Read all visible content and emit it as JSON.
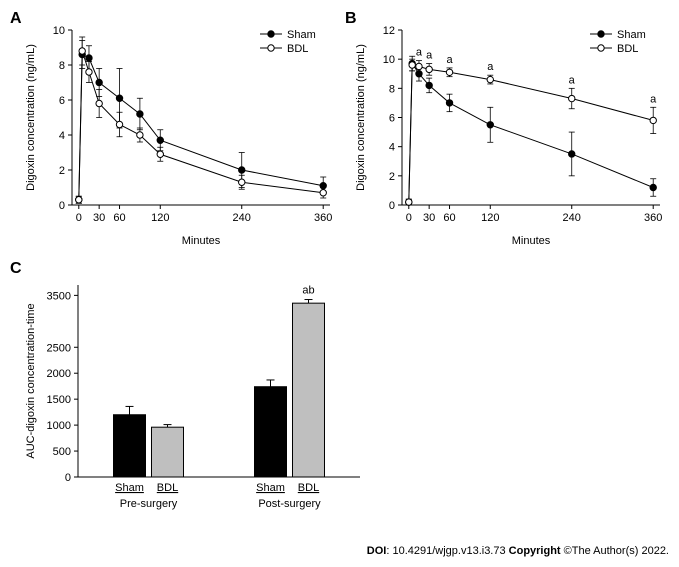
{
  "panelA": {
    "label": "A",
    "type": "line",
    "x_ticks": [
      0,
      30,
      60,
      120,
      240,
      360
    ],
    "x_label": "Minutes",
    "y_label": "Digoxin concentration (ng/mL)",
    "y_ticks": [
      0,
      2,
      4,
      6,
      8,
      10
    ],
    "ylim": [
      0,
      10
    ],
    "xlim": [
      -10,
      370
    ],
    "axis_fontsize": 11,
    "label_fontsize": 11,
    "background_color": "#ffffff",
    "line_color": "#000000",
    "series": [
      {
        "name": "Sham",
        "marker": "filled-circle",
        "color": "#000000",
        "points": [
          {
            "x": 0,
            "y": 0.3,
            "err": 0.2
          },
          {
            "x": 5,
            "y": 8.6,
            "err": 0.8
          },
          {
            "x": 15,
            "y": 8.4,
            "err": 0.7
          },
          {
            "x": 30,
            "y": 7.0,
            "err": 0.8
          },
          {
            "x": 60,
            "y": 6.1,
            "err": 1.7
          },
          {
            "x": 90,
            "y": 5.2,
            "err": 0.9
          },
          {
            "x": 120,
            "y": 3.7,
            "err": 0.6
          },
          {
            "x": 240,
            "y": 2.0,
            "err": 1.0
          },
          {
            "x": 360,
            "y": 1.1,
            "err": 0.5
          }
        ]
      },
      {
        "name": "BDL",
        "marker": "open-circle",
        "color": "#000000",
        "points": [
          {
            "x": 0,
            "y": 0.3,
            "err": 0.2
          },
          {
            "x": 5,
            "y": 8.8,
            "err": 0.8
          },
          {
            "x": 15,
            "y": 7.6,
            "err": 0.6
          },
          {
            "x": 30,
            "y": 5.8,
            "err": 0.8
          },
          {
            "x": 60,
            "y": 4.6,
            "err": 0.7
          },
          {
            "x": 90,
            "y": 4.0,
            "err": 0.4
          },
          {
            "x": 120,
            "y": 2.9,
            "err": 0.4
          },
          {
            "x": 240,
            "y": 1.3,
            "err": 0.4
          },
          {
            "x": 360,
            "y": 0.7,
            "err": 0.3
          }
        ]
      }
    ],
    "legend": {
      "items": [
        "Sham",
        "BDL"
      ]
    }
  },
  "panelB": {
    "label": "B",
    "type": "line",
    "x_ticks": [
      0,
      30,
      60,
      120,
      240,
      360
    ],
    "x_label": "Minutes",
    "y_label": "Digoxin concentration (ng/mL)",
    "y_ticks": [
      0,
      2,
      4,
      6,
      8,
      10,
      12
    ],
    "ylim": [
      0,
      12
    ],
    "xlim": [
      -10,
      370
    ],
    "axis_fontsize": 11,
    "label_fontsize": 11,
    "background_color": "#ffffff",
    "line_color": "#000000",
    "annotation_label": "a",
    "annotation_points": [
      15,
      30,
      60,
      120,
      240,
      360
    ],
    "series": [
      {
        "name": "Sham",
        "marker": "filled-circle",
        "color": "#000000",
        "points": [
          {
            "x": 0,
            "y": 0.2,
            "err": 0.2
          },
          {
            "x": 5,
            "y": 9.7,
            "err": 0.5
          },
          {
            "x": 15,
            "y": 9.0,
            "err": 0.5
          },
          {
            "x": 30,
            "y": 8.2,
            "err": 0.5
          },
          {
            "x": 60,
            "y": 7.0,
            "err": 0.6
          },
          {
            "x": 120,
            "y": 5.5,
            "err": 1.2
          },
          {
            "x": 240,
            "y": 3.5,
            "err": 1.5
          },
          {
            "x": 360,
            "y": 1.2,
            "err": 0.6
          }
        ]
      },
      {
        "name": "BDL",
        "marker": "open-circle",
        "color": "#000000",
        "points": [
          {
            "x": 0,
            "y": 0.2,
            "err": 0.2
          },
          {
            "x": 5,
            "y": 9.6,
            "err": 0.4
          },
          {
            "x": 15,
            "y": 9.5,
            "err": 0.4
          },
          {
            "x": 30,
            "y": 9.3,
            "err": 0.4
          },
          {
            "x": 60,
            "y": 9.1,
            "err": 0.3
          },
          {
            "x": 120,
            "y": 8.6,
            "err": 0.3
          },
          {
            "x": 240,
            "y": 7.3,
            "err": 0.7
          },
          {
            "x": 360,
            "y": 5.8,
            "err": 0.9
          }
        ]
      }
    ],
    "legend": {
      "items": [
        "Sham",
        "BDL"
      ]
    }
  },
  "panelC": {
    "label": "C",
    "type": "bar",
    "y_label": "AUC-digoxin concentration-time",
    "y_ticks": [
      0,
      500,
      1000,
      1500,
      2000,
      2500,
      3500
    ],
    "ylim": [
      0,
      3700
    ],
    "axis_fontsize": 11,
    "label_fontsize": 11,
    "background_color": "#ffffff",
    "colors": {
      "Sham": "#000000",
      "BDL": "#bfbfbf"
    },
    "bar_border": "#000000",
    "groups": [
      {
        "group_label": "Pre-surgery",
        "bars": [
          {
            "label": "Sham",
            "value": 1200,
            "err": 160,
            "annotation": ""
          },
          {
            "label": "BDL",
            "value": 960,
            "err": 50,
            "annotation": ""
          }
        ]
      },
      {
        "group_label": "Post-surgery",
        "bars": [
          {
            "label": "Sham",
            "value": 1740,
            "err": 130,
            "annotation": ""
          },
          {
            "label": "BDL",
            "value": 3350,
            "err": 70,
            "annotation": "ab"
          }
        ]
      }
    ]
  },
  "footer": {
    "doi_label": "DOI",
    "doi_value": ": 10.4291/wjgp.v13.i3.73 ",
    "copyright_label": "Copyright",
    "copyright_value": " ©The Author(s) 2022."
  }
}
